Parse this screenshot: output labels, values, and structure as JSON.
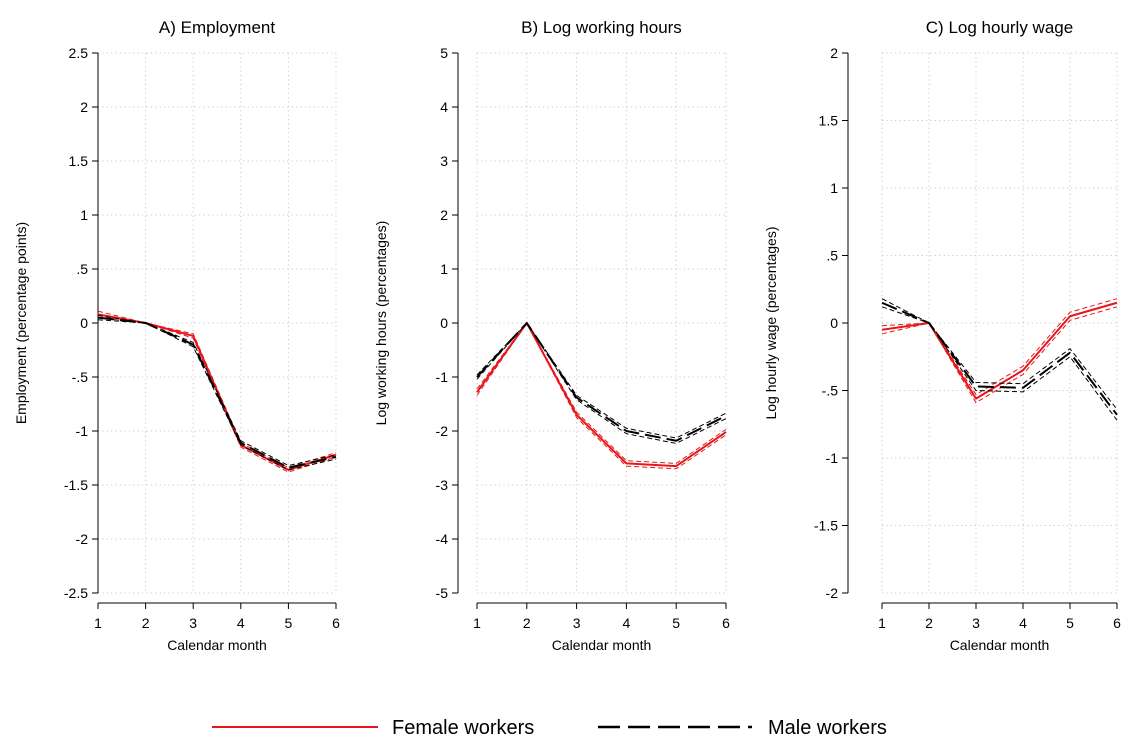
{
  "legend": {
    "position": "bottom",
    "entries": [
      {
        "label": "Female workers",
        "color": "#e8161b",
        "style": "solid"
      },
      {
        "label": "Male workers",
        "color": "#000000",
        "style": "dashed"
      }
    ]
  },
  "chart_data": [
    {
      "type": "line",
      "title": "A) Employment",
      "xlabel": "Calendar month",
      "ylabel": "Employment (percentage points)",
      "x": [
        1,
        2,
        3,
        4,
        5,
        6
      ],
      "xlim": [
        1,
        6
      ],
      "ylim": [
        -2.5,
        2.5
      ],
      "yticks": [
        -2.5,
        -2,
        -1.5,
        -1,
        -0.5,
        0,
        0.5,
        1,
        1.5,
        2,
        2.5
      ],
      "ytick_labels": [
        "-2.5",
        "-2",
        "-1.5",
        "-1",
        "-.5",
        "0",
        ".5",
        "1",
        "1.5",
        "2",
        "2.5"
      ],
      "xtick_labels": [
        "1",
        "2",
        "3",
        "4",
        "5",
        "6"
      ],
      "grid": true,
      "series": [
        {
          "name": "Female workers",
          "color": "#e8161b",
          "style": "solid",
          "values": [
            0.08,
            0.0,
            -0.12,
            -1.13,
            -1.36,
            -1.22
          ],
          "band": [
            [
              0.11,
              0.05
            ],
            [
              0.0,
              0.0
            ],
            [
              -0.1,
              -0.14
            ],
            [
              -1.11,
              -1.15
            ],
            [
              -1.34,
              -1.38
            ],
            [
              -1.2,
              -1.24
            ]
          ]
        },
        {
          "name": "Male workers",
          "color": "#000000",
          "style": "dashed",
          "values": [
            0.05,
            0.0,
            -0.2,
            -1.11,
            -1.34,
            -1.24
          ],
          "band": [
            [
              0.07,
              0.03
            ],
            [
              0.0,
              0.0
            ],
            [
              -0.18,
              -0.22
            ],
            [
              -1.09,
              -1.13
            ],
            [
              -1.32,
              -1.36
            ],
            [
              -1.22,
              -1.26
            ]
          ]
        }
      ]
    },
    {
      "type": "line",
      "title": "B) Log working hours",
      "xlabel": "Calendar month",
      "ylabel": "Log working hours (percentages)",
      "x": [
        1,
        2,
        3,
        4,
        5,
        6
      ],
      "xlim": [
        1,
        6
      ],
      "ylim": [
        -5,
        5
      ],
      "yticks": [
        -5,
        -4,
        -3,
        -2,
        -1,
        0,
        1,
        2,
        3,
        4,
        5
      ],
      "ytick_labels": [
        "-5",
        "-4",
        "-3",
        "-2",
        "-1",
        "0",
        "1",
        "2",
        "3",
        "4",
        "5"
      ],
      "xtick_labels": [
        "1",
        "2",
        "3",
        "4",
        "5",
        "6"
      ],
      "grid": true,
      "series": [
        {
          "name": "Female workers",
          "color": "#e8161b",
          "style": "solid",
          "values": [
            -1.28,
            0.0,
            -1.7,
            -2.6,
            -2.65,
            -2.02
          ],
          "band": [
            [
              -1.22,
              -1.34
            ],
            [
              0.0,
              0.0
            ],
            [
              -1.65,
              -1.75
            ],
            [
              -2.55,
              -2.65
            ],
            [
              -2.6,
              -2.7
            ],
            [
              -1.97,
              -2.07
            ]
          ]
        },
        {
          "name": "Male workers",
          "color": "#000000",
          "style": "dashed",
          "values": [
            -1.0,
            0.0,
            -1.38,
            -2.0,
            -2.18,
            -1.72
          ],
          "band": [
            [
              -0.96,
              -1.04
            ],
            [
              0.0,
              0.0
            ],
            [
              -1.34,
              -1.42
            ],
            [
              -1.95,
              -2.05
            ],
            [
              -2.13,
              -2.23
            ],
            [
              -1.67,
              -1.77
            ]
          ]
        }
      ]
    },
    {
      "type": "line",
      "title": "C) Log hourly wage",
      "xlabel": "Calendar month",
      "ylabel": "Log hourly wage (percentages)",
      "x": [
        1,
        2,
        3,
        4,
        5,
        6
      ],
      "xlim": [
        1,
        6
      ],
      "ylim": [
        -2,
        2
      ],
      "yticks": [
        -2,
        -1.5,
        -1,
        -0.5,
        0,
        0.5,
        1,
        1.5,
        2
      ],
      "ytick_labels": [
        "-2",
        "-1.5",
        "-1",
        "-.5",
        "0",
        ".5",
        "1",
        "1.5",
        "2"
      ],
      "xtick_labels": [
        "1",
        "2",
        "3",
        "4",
        "5",
        "6"
      ],
      "grid": true,
      "series": [
        {
          "name": "Female workers",
          "color": "#e8161b",
          "style": "solid",
          "values": [
            -0.05,
            0.0,
            -0.56,
            -0.35,
            0.05,
            0.15
          ],
          "band": [
            [
              -0.02,
              -0.08
            ],
            [
              0.0,
              0.0
            ],
            [
              -0.53,
              -0.59
            ],
            [
              -0.32,
              -0.38
            ],
            [
              0.08,
              0.02
            ],
            [
              0.18,
              0.12
            ]
          ]
        },
        {
          "name": "Male workers",
          "color": "#000000",
          "style": "dashed",
          "values": [
            0.15,
            0.0,
            -0.47,
            -0.48,
            -0.22,
            -0.68
          ],
          "band": [
            [
              0.18,
              0.12
            ],
            [
              0.0,
              0.0
            ],
            [
              -0.44,
              -0.5
            ],
            [
              -0.45,
              -0.51
            ],
            [
              -0.19,
              -0.25
            ],
            [
              -0.64,
              -0.72
            ]
          ]
        }
      ]
    }
  ]
}
